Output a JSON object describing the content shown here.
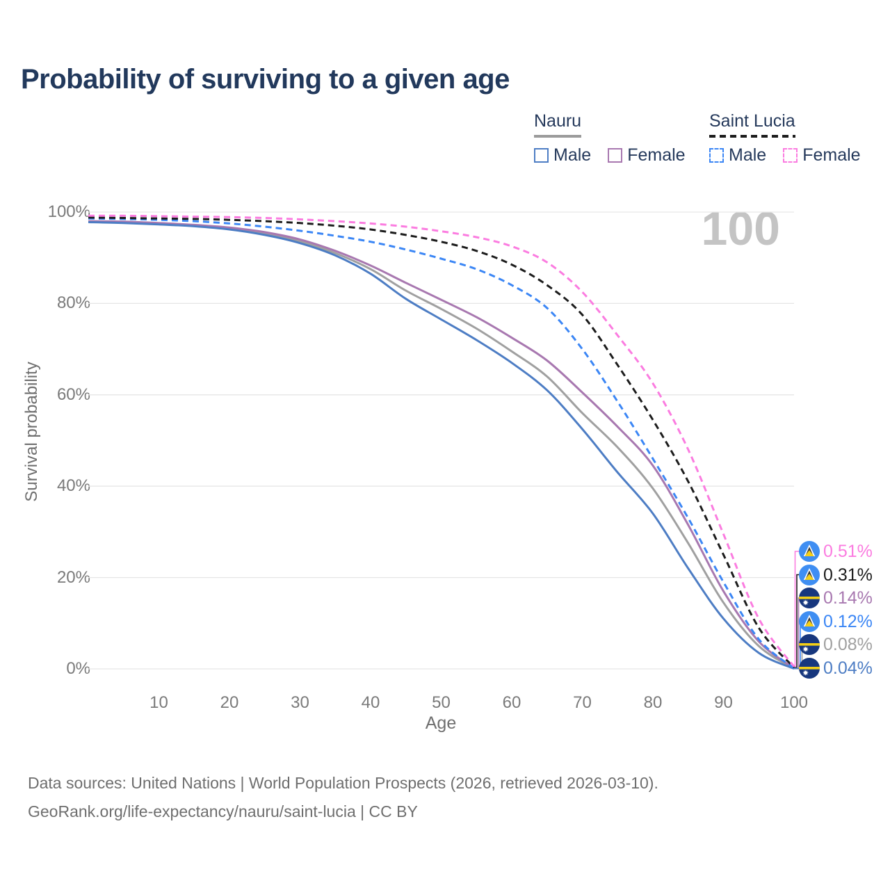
{
  "title": "Probability of surviving to a given age",
  "watermark": "100",
  "legend": {
    "groups": [
      {
        "name": "Nauru",
        "underline_color": "#9b9b9b",
        "underline_style": "solid",
        "items": [
          {
            "label": "Male",
            "color": "#4d7dc4",
            "dashed": false
          },
          {
            "label": "Female",
            "color": "#a878b0",
            "dashed": false
          }
        ]
      },
      {
        "name": "Saint Lucia",
        "underline_color": "#1c1c1c",
        "underline_style": "dashed",
        "items": [
          {
            "label": "Male",
            "color": "#3b86f5",
            "dashed": true
          },
          {
            "label": "Female",
            "color": "#fb7ce0",
            "dashed": true
          }
        ]
      }
    ]
  },
  "axes": {
    "ylabel": "Survival probability",
    "xlabel": "Age"
  },
  "chart_data": {
    "type": "line",
    "title": "Probability of surviving to a given age",
    "xlabel": "Age",
    "ylabel": "Survival probability",
    "xlim": [
      0,
      100
    ],
    "ylim": [
      0,
      100
    ],
    "grid": "horizontal",
    "legend_position": "top-right",
    "yticks": [
      {
        "value": 0,
        "label": "0%"
      },
      {
        "value": 20,
        "label": "20%"
      },
      {
        "value": 40,
        "label": "40%"
      },
      {
        "value": 60,
        "label": "60%"
      },
      {
        "value": 80,
        "label": "80%"
      },
      {
        "value": 100,
        "label": "100%"
      }
    ],
    "xticks": [
      {
        "value": 10,
        "label": "10"
      },
      {
        "value": 20,
        "label": "20"
      },
      {
        "value": 30,
        "label": "30"
      },
      {
        "value": 40,
        "label": "40"
      },
      {
        "value": 50,
        "label": "50"
      },
      {
        "value": 60,
        "label": "60"
      },
      {
        "value": 70,
        "label": "70"
      },
      {
        "value": 80,
        "label": "80"
      },
      {
        "value": 90,
        "label": "90"
      },
      {
        "value": 100,
        "label": "100"
      }
    ],
    "x": [
      0,
      5,
      10,
      15,
      20,
      25,
      30,
      35,
      40,
      45,
      50,
      55,
      60,
      65,
      70,
      75,
      80,
      85,
      90,
      95,
      100
    ],
    "series": [
      {
        "name": "nauru-all",
        "country": "Nauru",
        "sex": "Both",
        "color": "#a0a0a0",
        "dashed": false,
        "flag": "nauru",
        "end_label": "0.08%",
        "values": [
          97.9,
          97.7,
          97.4,
          97.0,
          96.4,
          95.3,
          93.6,
          91.0,
          87.5,
          82.8,
          78.8,
          74.5,
          69.5,
          64.0,
          56.0,
          48.5,
          39.5,
          27.5,
          14.5,
          5.0,
          0.08
        ]
      },
      {
        "name": "nauru-female",
        "country": "Nauru",
        "sex": "Female",
        "color": "#a878b0",
        "dashed": false,
        "flag": "nauru",
        "end_label": "0.14%",
        "values": [
          98.0,
          97.9,
          97.6,
          97.2,
          96.6,
          95.6,
          94.0,
          91.5,
          88.3,
          84.5,
          80.8,
          77.0,
          72.5,
          67.5,
          60.5,
          53.0,
          44.5,
          31.5,
          17.0,
          6.0,
          0.14
        ]
      },
      {
        "name": "nauru-male",
        "country": "Nauru",
        "sex": "Male",
        "color": "#4d7dc4",
        "dashed": false,
        "flag": "nauru",
        "end_label": "0.04%",
        "values": [
          97.8,
          97.6,
          97.3,
          96.9,
          96.2,
          95.0,
          93.2,
          90.5,
          86.5,
          81.0,
          76.5,
          72.0,
          67.0,
          61.0,
          52.5,
          43.0,
          34.0,
          22.0,
          11.0,
          3.5,
          0.04
        ]
      },
      {
        "name": "saint-lucia-male",
        "country": "Saint Lucia",
        "sex": "Male",
        "color": "#3b86f5",
        "dashed": true,
        "flag": "saint-lucia",
        "end_label": "0.12%",
        "values": [
          98.6,
          98.5,
          98.3,
          98.0,
          97.5,
          96.8,
          95.9,
          94.8,
          93.5,
          91.8,
          89.8,
          87.5,
          84.0,
          79.0,
          70.0,
          58.5,
          46.0,
          33.0,
          19.0,
          6.5,
          0.12
        ]
      },
      {
        "name": "saint-lucia-all",
        "country": "Saint Lucia",
        "sex": "Both",
        "color": "#1c1c1c",
        "dashed": true,
        "flag": "saint-lucia",
        "end_label": "0.31%",
        "values": [
          98.8,
          98.7,
          98.6,
          98.5,
          98.3,
          98.0,
          97.6,
          97.0,
          96.2,
          95.0,
          93.5,
          91.5,
          88.5,
          84.0,
          77.5,
          66.5,
          54.5,
          41.0,
          25.0,
          9.0,
          0.31
        ]
      },
      {
        "name": "saint-lucia-female",
        "country": "Saint Lucia",
        "sex": "Female",
        "color": "#fb7ce0",
        "dashed": true,
        "flag": "saint-lucia",
        "end_label": "0.51%",
        "values": [
          99.2,
          99.2,
          99.1,
          99.0,
          98.9,
          98.7,
          98.4,
          98.0,
          97.5,
          96.8,
          95.8,
          94.5,
          92.5,
          89.0,
          82.5,
          73.0,
          62.5,
          48.0,
          29.5,
          11.0,
          0.51
        ]
      }
    ]
  },
  "footer": {
    "line1": "Data sources: United Nations | World Population Prospects (2026, retrieved 2026-03-10).",
    "line2": "GeoRank.org/life-expectancy/nauru/saint-lucia | CC BY"
  }
}
